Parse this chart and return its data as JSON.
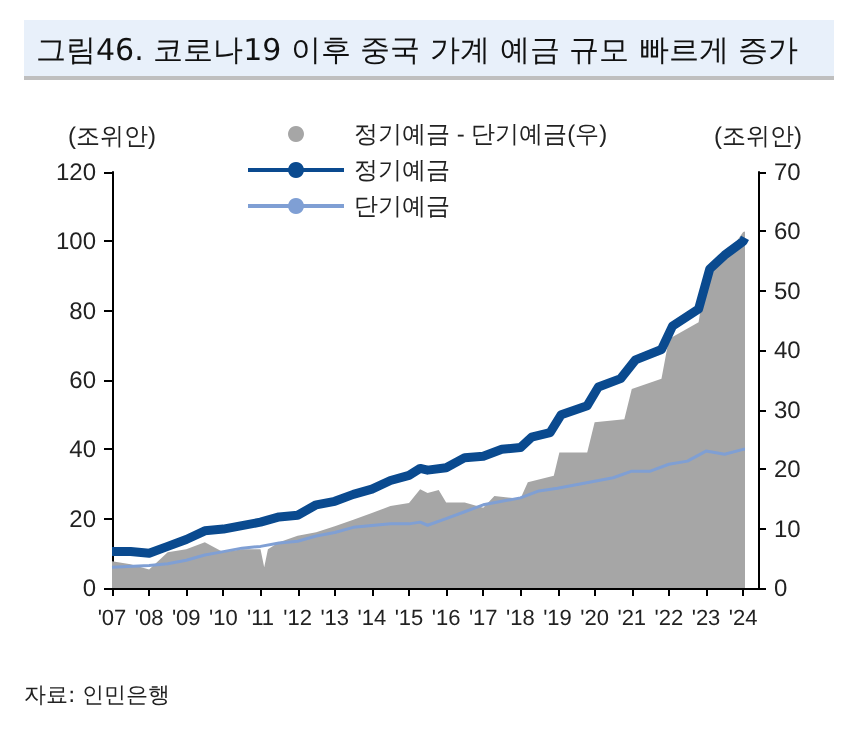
{
  "chart_data": {
    "type": "line",
    "title": "그림46. 코로나19 이후 중국 가계 예금 규모 빠르게 증가",
    "ylabel": "(조위안)",
    "y2label": "(조위안)",
    "annotations": [
      "자료: 인민은행"
    ],
    "xlim": [
      2007,
      2024.4
    ],
    "xticks": [
      {
        "value": 2007,
        "label": "'07"
      },
      {
        "value": 2008,
        "label": "'08"
      },
      {
        "value": 2009,
        "label": "'09"
      },
      {
        "value": 2010,
        "label": "'10"
      },
      {
        "value": 2011,
        "label": "'11"
      },
      {
        "value": 2012,
        "label": "'12"
      },
      {
        "value": 2013,
        "label": "'13"
      },
      {
        "value": 2014,
        "label": "'14"
      },
      {
        "value": 2015,
        "label": "'15"
      },
      {
        "value": 2016,
        "label": "'16"
      },
      {
        "value": 2017,
        "label": "'17"
      },
      {
        "value": 2018,
        "label": "'18"
      },
      {
        "value": 2019,
        "label": "'19"
      },
      {
        "value": 2020,
        "label": "'20"
      },
      {
        "value": 2021,
        "label": "'21"
      },
      {
        "value": 2022,
        "label": "'22"
      },
      {
        "value": 2023,
        "label": "'23"
      },
      {
        "value": 2024,
        "label": "'24"
      }
    ],
    "ylim": [
      0,
      120
    ],
    "yticks": [
      0,
      20,
      40,
      60,
      80,
      100,
      120
    ],
    "y2lim": [
      0,
      70
    ],
    "y2ticks": [
      0,
      10,
      20,
      30,
      40,
      50,
      60,
      70
    ],
    "grid": false,
    "legend": "top",
    "series": [
      {
        "name": "정기예금 - 단기예금(우)",
        "type": "area",
        "axis": "y2",
        "color": "#a6a6a6",
        "x": [
          2007,
          2007.5,
          2008,
          2008.5,
          2009,
          2009.5,
          2010,
          2010.5,
          2011,
          2011.1,
          2011.2,
          2011.5,
          2012,
          2012.5,
          2013,
          2013.5,
          2014,
          2014.5,
          2015,
          2015.3,
          2015.5,
          2015.8,
          2016,
          2016.5,
          2017,
          2017.3,
          2018,
          2018.2,
          2018.9,
          2019.05,
          2019.8,
          2020,
          2020.8,
          2021,
          2021.8,
          2022,
          2022.8,
          2023,
          2023.5,
          2024,
          2024.05
        ],
        "values": [
          4.5,
          4,
          3.1,
          6,
          6.5,
          7.7,
          6,
          6.5,
          6.5,
          3.5,
          6.5,
          7.7,
          8.8,
          9.4,
          10.4,
          11.5,
          12.6,
          13.8,
          14.3,
          16.6,
          16,
          16.5,
          14.4,
          14.4,
          13.5,
          15.5,
          15,
          17.8,
          18.9,
          22.8,
          22.8,
          27.9,
          28.4,
          33.5,
          35.2,
          41.9,
          44.7,
          53,
          55.4,
          59.9,
          60
        ]
      },
      {
        "name": "정기예금",
        "color": "#0a4a8f",
        "x": [
          2007,
          2007.5,
          2008,
          2008.5,
          2009,
          2009.5,
          2010,
          2010.5,
          2011,
          2011.5,
          2012,
          2012.5,
          2013,
          2013.5,
          2014,
          2014.5,
          2015,
          2015.3,
          2015.5,
          2016,
          2016.5,
          2017,
          2017.5,
          2018,
          2018.3,
          2018.8,
          2019.1,
          2019.8,
          2020.1,
          2020.7,
          2021.1,
          2021.8,
          2022.1,
          2022.8,
          2023.1,
          2023.5,
          2024,
          2024.05
        ],
        "values": [
          10.5,
          10.5,
          10,
          12,
          14,
          16.5,
          17,
          18,
          19,
          20.5,
          21,
          24,
          25,
          27,
          28.5,
          31,
          32.5,
          34.5,
          34,
          34.7,
          37.6,
          38,
          40,
          40.5,
          43.5,
          44.8,
          50,
          52.6,
          58,
          60.4,
          65.8,
          68.8,
          75.6,
          80.5,
          92,
          96,
          100,
          101
        ]
      },
      {
        "name": "단기예금",
        "color": "#7f9fd4",
        "x": [
          2007,
          2008,
          2008.5,
          2009,
          2009.5,
          2010,
          2010.5,
          2011,
          2011.5,
          2012,
          2012.5,
          2013,
          2013.5,
          2014,
          2014.5,
          2015,
          2015.3,
          2015.5,
          2016,
          2016.5,
          2017,
          2017.5,
          2018,
          2018.5,
          2019,
          2019.5,
          2020,
          2020.5,
          2021,
          2021.5,
          2022,
          2022.5,
          2023,
          2023.5,
          2024,
          2024.05
        ],
        "values": [
          6,
          6.5,
          7,
          8,
          9.5,
          10.5,
          11.5,
          12,
          13,
          13.5,
          15,
          16,
          17.5,
          18,
          18.5,
          18.5,
          19,
          18.1,
          20,
          22,
          24,
          25,
          26,
          28,
          28.8,
          29.8,
          30.8,
          31.8,
          33.7,
          33.7,
          35.7,
          36.6,
          39.5,
          38.6,
          40,
          40
        ]
      }
    ]
  }
}
